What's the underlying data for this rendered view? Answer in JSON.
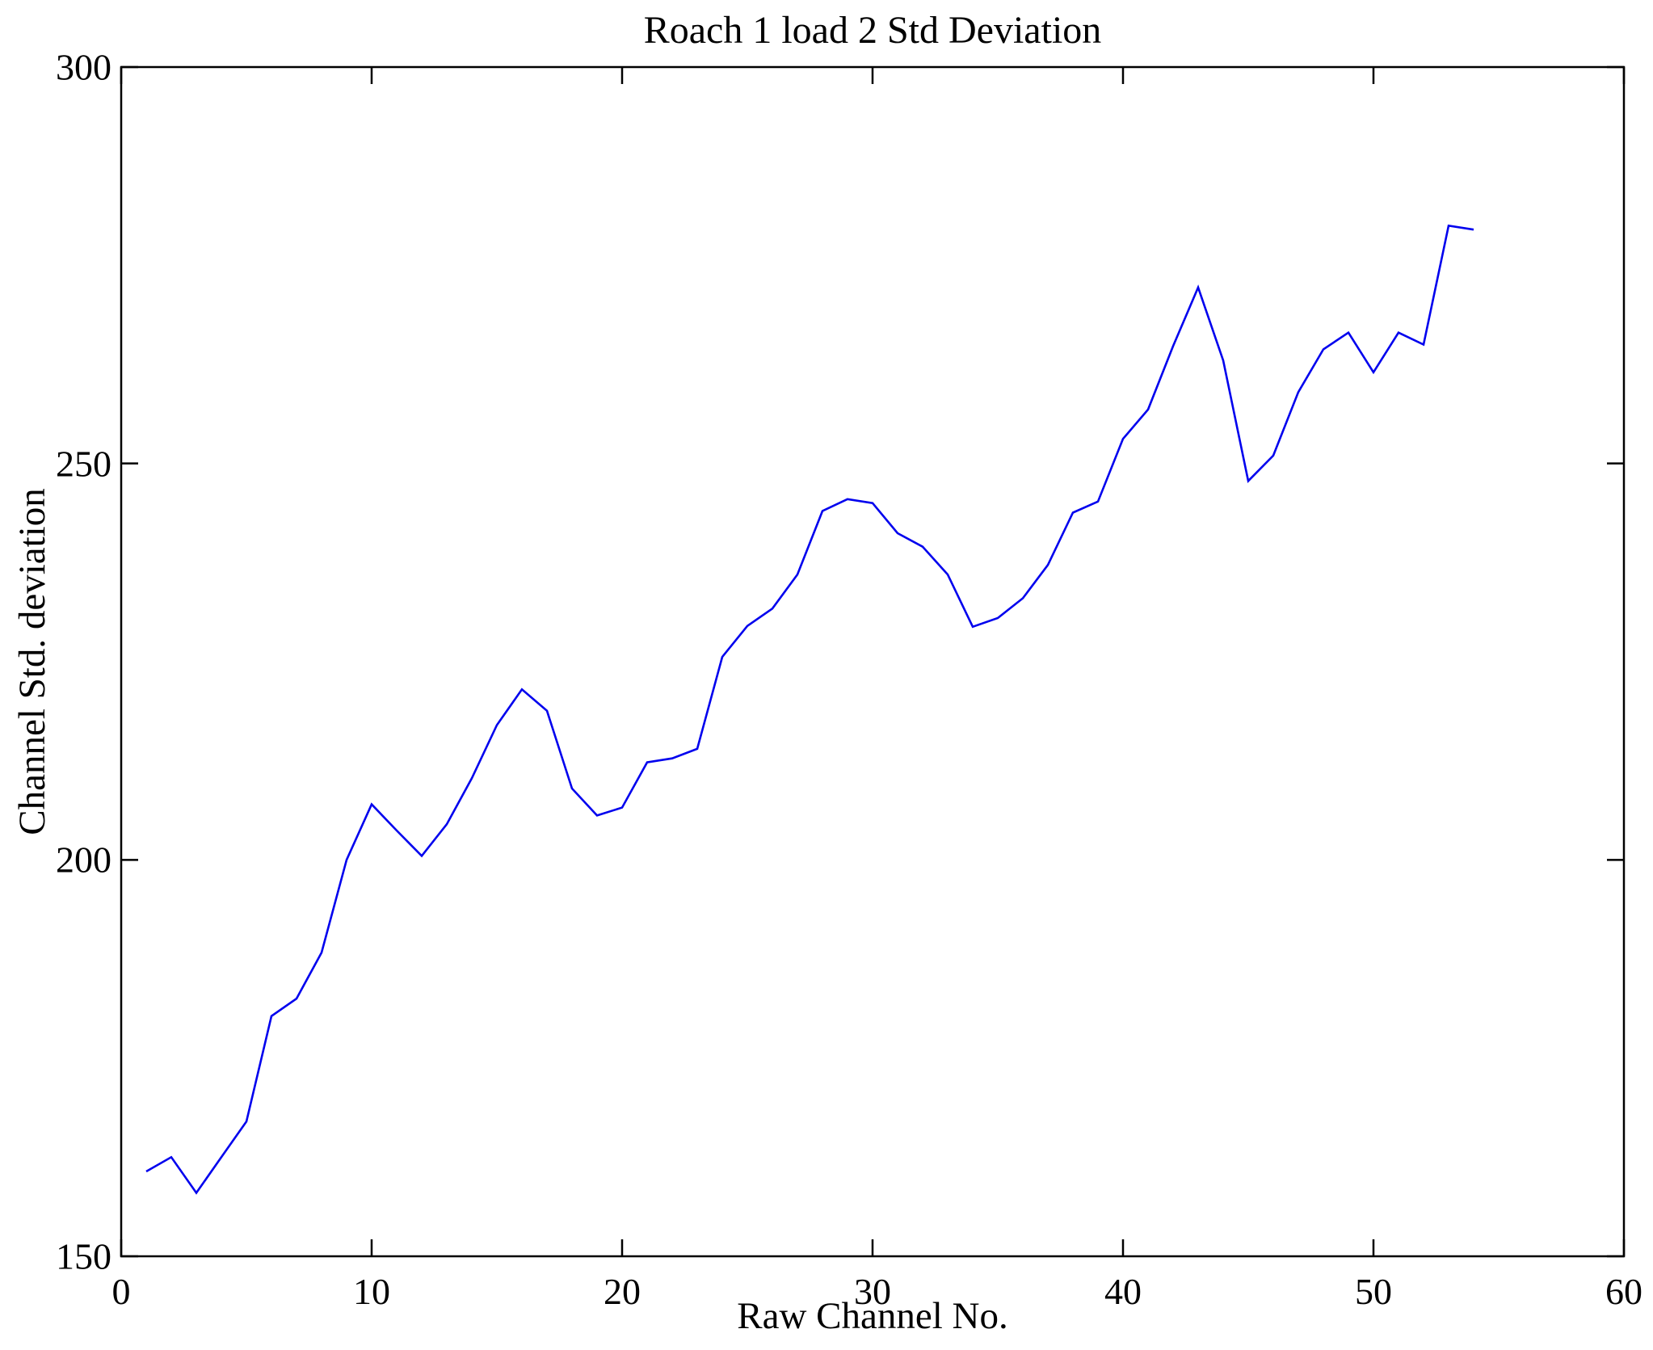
{
  "chart_data": {
    "type": "line",
    "title": "Roach 1 load 2 Std Deviation",
    "xlabel": "Raw Channel No.",
    "ylabel": "Channel Std. deviation",
    "xlim": [
      0,
      60
    ],
    "ylim": [
      150,
      300
    ],
    "xticks": [
      0,
      10,
      20,
      30,
      40,
      50,
      60
    ],
    "yticks": [
      150,
      200,
      250,
      300
    ],
    "grid": false,
    "legend": "none",
    "box": true,
    "tick_direction": "in",
    "line_color": "#0000EE",
    "axis_color": "#000000",
    "background_color": "#ffffff",
    "series": [
      {
        "name": "Channel Std. deviation",
        "x": [
          1,
          2,
          3,
          4,
          5,
          6,
          7,
          8,
          9,
          10,
          11,
          12,
          13,
          14,
          15,
          16,
          17,
          18,
          19,
          20,
          21,
          22,
          23,
          24,
          25,
          26,
          27,
          28,
          29,
          30,
          31,
          32,
          33,
          34,
          35,
          36,
          37,
          38,
          39,
          40,
          41,
          42,
          43,
          44,
          45,
          46,
          47,
          48,
          49,
          50,
          51,
          52,
          53,
          54
        ],
        "y": [
          160.7,
          162.5,
          158.0,
          162.5,
          167.0,
          180.3,
          182.5,
          188.3,
          200.0,
          207.0,
          203.7,
          200.5,
          204.5,
          210.3,
          217.0,
          221.5,
          218.8,
          209.0,
          205.6,
          206.6,
          212.3,
          212.8,
          214.0,
          225.6,
          229.5,
          231.7,
          236.0,
          244.0,
          245.5,
          245.0,
          241.2,
          239.5,
          236.0,
          229.4,
          230.5,
          233.0,
          237.2,
          243.8,
          245.2,
          253.1,
          256.8,
          264.8,
          272.2,
          263.0,
          247.8,
          251.0,
          259.0,
          264.4,
          266.5,
          261.5,
          266.5,
          265.0,
          280.0,
          279.5
        ]
      }
    ]
  }
}
